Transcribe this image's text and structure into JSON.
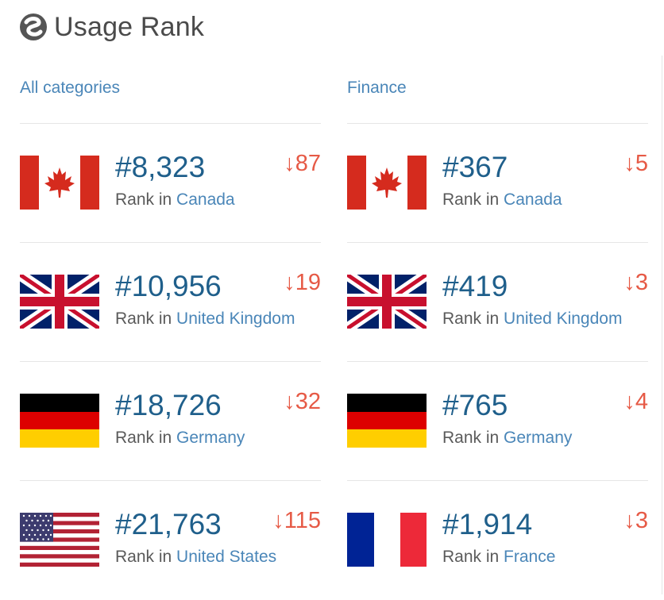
{
  "header": {
    "title": "Usage Rank",
    "logo_icon": "similarweb-logo-icon"
  },
  "columns": [
    {
      "category": "All categories",
      "rows": [
        {
          "flag": "canada",
          "rank": "#8,323",
          "label": "Rank in",
          "country": "Canada",
          "change": "87"
        },
        {
          "flag": "uk",
          "rank": "#10,956",
          "label": "Rank in",
          "country": "United Kingdom",
          "change": "19"
        },
        {
          "flag": "germany",
          "rank": "#18,726",
          "label": "Rank in",
          "country": "Germany",
          "change": "32"
        },
        {
          "flag": "usa",
          "rank": "#21,763",
          "label": "Rank in",
          "country": "United States",
          "change": "115"
        }
      ]
    },
    {
      "category": "Finance",
      "rows": [
        {
          "flag": "canada",
          "rank": "#367",
          "label": "Rank in",
          "country": "Canada",
          "change": "5"
        },
        {
          "flag": "uk",
          "rank": "#419",
          "label": "Rank in",
          "country": "United Kingdom",
          "change": "3"
        },
        {
          "flag": "germany",
          "rank": "#765",
          "label": "Rank in",
          "country": "Germany",
          "change": "4"
        },
        {
          "flag": "france",
          "rank": "#1,914",
          "label": "Rank in",
          "country": "France",
          "change": "3"
        }
      ]
    }
  ],
  "change_arrow": "↓",
  "colors": {
    "rank": "#1f5f8b",
    "link": "#4a86b8",
    "decrease": "#e65a46",
    "title": "#4a4a4a"
  }
}
